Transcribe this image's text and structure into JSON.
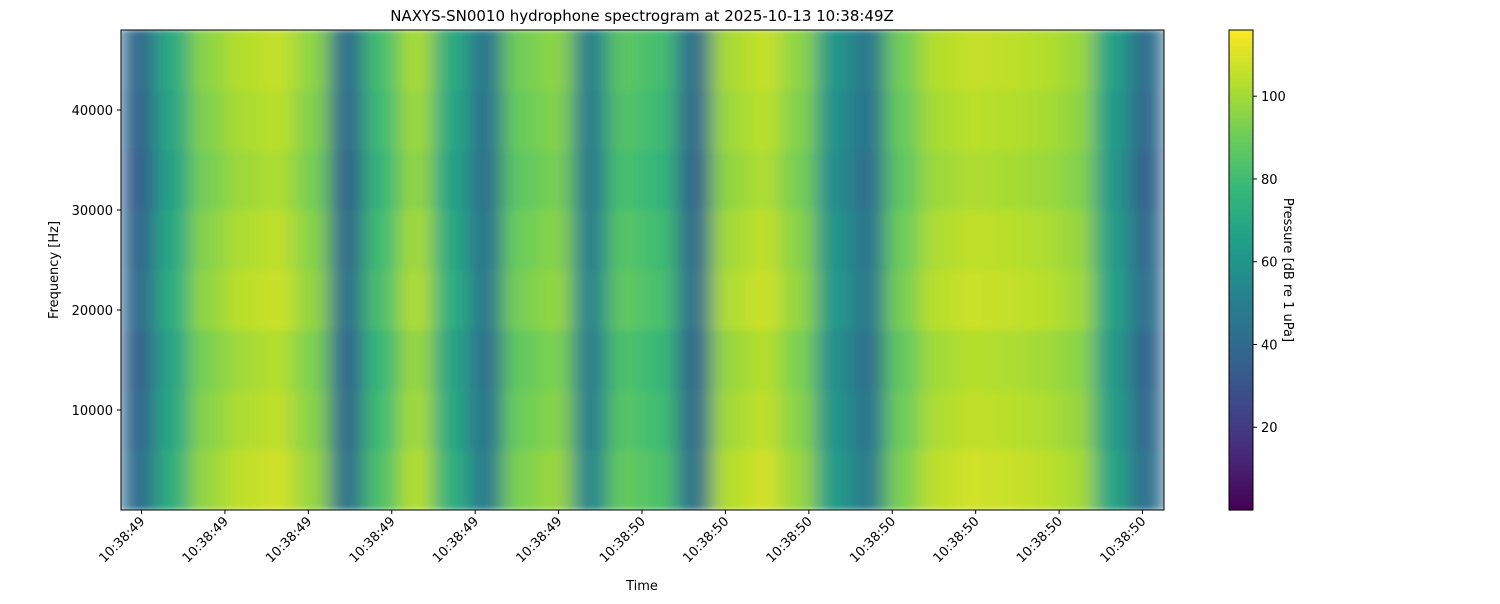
{
  "chart_data": {
    "type": "spectrogram",
    "title": "NAXYS-SN0010 hydrophone spectrogram at 2025-10-13 10:38:49Z",
    "x_label": "Time",
    "y_label": "Frequency [Hz]",
    "colorbar_label": "Pressure [dB re 1 uPa]",
    "xticks": [
      "10:38:49",
      "10:38:49",
      "10:38:49",
      "10:38:49",
      "10:38:49",
      "10:38:49",
      "10:38:50",
      "10:38:50",
      "10:38:50",
      "10:38:50",
      "10:38:50",
      "10:38:50",
      "10:38:50"
    ],
    "ylim": [
      0,
      48000
    ],
    "yticks": [
      10000,
      20000,
      30000,
      40000
    ],
    "ybins": [
      0,
      6000,
      12000,
      18000,
      24000,
      30000,
      36000,
      42000,
      48000
    ],
    "clim": [
      0,
      116
    ],
    "colorbar_ticks": [
      20,
      40,
      60,
      80,
      100
    ],
    "colormap": "viridis",
    "z": [
      [
        41,
        73,
        98,
        105,
        108,
        98,
        43,
        83,
        103,
        73,
        48,
        93,
        98,
        53,
        88,
        83,
        43,
        103,
        108,
        98,
        63,
        48,
        93,
        105,
        108,
        107,
        105,
        101,
        68,
        43
      ],
      [
        38,
        70,
        95,
        102,
        105,
        95,
        40,
        80,
        100,
        70,
        45,
        90,
        95,
        50,
        85,
        80,
        40,
        100,
        105,
        95,
        60,
        45,
        90,
        102,
        105,
        104,
        102,
        98,
        65,
        40
      ],
      [
        36,
        68,
        93,
        100,
        103,
        93,
        38,
        78,
        98,
        68,
        43,
        88,
        93,
        48,
        83,
        78,
        38,
        98,
        103,
        93,
        58,
        43,
        88,
        100,
        103,
        102,
        100,
        96,
        63,
        38
      ],
      [
        40,
        72,
        97,
        104,
        107,
        97,
        42,
        82,
        102,
        72,
        47,
        92,
        97,
        52,
        87,
        82,
        42,
        102,
        107,
        97,
        62,
        47,
        92,
        104,
        107,
        106,
        104,
        100,
        67,
        42
      ],
      [
        38,
        70,
        95,
        102,
        105,
        95,
        40,
        80,
        100,
        70,
        45,
        90,
        95,
        50,
        85,
        80,
        40,
        100,
        105,
        95,
        60,
        45,
        90,
        102,
        105,
        104,
        102,
        98,
        65,
        40
      ],
      [
        35,
        67,
        92,
        99,
        102,
        92,
        37,
        77,
        97,
        67,
        42,
        87,
        92,
        47,
        82,
        77,
        37,
        97,
        102,
        92,
        57,
        42,
        87,
        99,
        102,
        101,
        99,
        95,
        62,
        37
      ],
      [
        37,
        69,
        94,
        101,
        104,
        94,
        39,
        79,
        99,
        69,
        44,
        89,
        94,
        49,
        84,
        79,
        39,
        99,
        104,
        94,
        59,
        44,
        89,
        101,
        104,
        103,
        101,
        97,
        64,
        39
      ],
      [
        39,
        71,
        96,
        103,
        106,
        96,
        41,
        81,
        101,
        71,
        46,
        91,
        96,
        51,
        86,
        81,
        41,
        101,
        106,
        96,
        61,
        46,
        91,
        103,
        106,
        105,
        103,
        99,
        66,
        41
      ]
    ]
  }
}
